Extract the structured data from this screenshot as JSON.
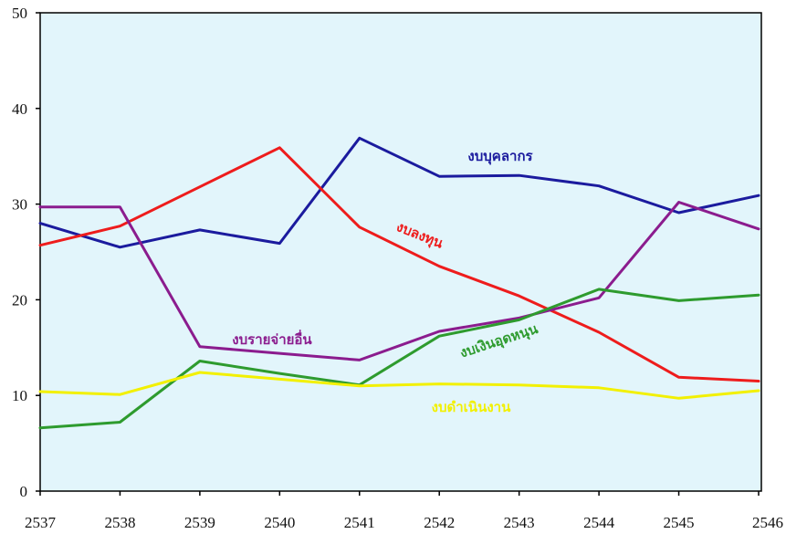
{
  "chart_data": {
    "type": "line",
    "x": [
      "2537",
      "2538",
      "2539",
      "2540",
      "2541",
      "2542",
      "2543",
      "2544",
      "2545",
      "2546"
    ],
    "ylim": [
      0,
      50
    ],
    "yticks": [
      "0",
      "10",
      "20",
      "30",
      "40",
      "50"
    ],
    "grid": false,
    "plot_background": "#E2F5FB",
    "series": [
      {
        "name": "งบบุคลากร",
        "color": "#1B1B9E",
        "values": [
          28.0,
          25.5,
          27.3,
          25.9,
          36.9,
          32.9,
          33.0,
          31.9,
          29.1,
          30.9
        ]
      },
      {
        "name": "งบลงทุน",
        "color": "#EE1C1C",
        "values": [
          25.7,
          27.7,
          31.8,
          35.9,
          27.6,
          23.5,
          20.4,
          16.6,
          11.9,
          11.5
        ]
      },
      {
        "name": "งบรายจ่ายอื่น",
        "color": "#8B1C8E",
        "values": [
          29.7,
          29.7,
          15.1,
          14.4,
          13.7,
          16.7,
          18.1,
          20.2,
          30.2,
          27.4
        ]
      },
      {
        "name": "งบเงินอุดหนุน",
        "color": "#2E9B2E",
        "values": [
          6.6,
          7.2,
          13.6,
          12.3,
          11.1,
          16.2,
          17.9,
          21.1,
          19.9,
          20.5
        ]
      },
      {
        "name": "งบดำเนินงาน",
        "color": "#F2F000",
        "values": [
          10.4,
          10.1,
          12.4,
          11.7,
          11.0,
          11.2,
          11.1,
          10.8,
          9.7,
          10.5
        ]
      }
    ]
  }
}
